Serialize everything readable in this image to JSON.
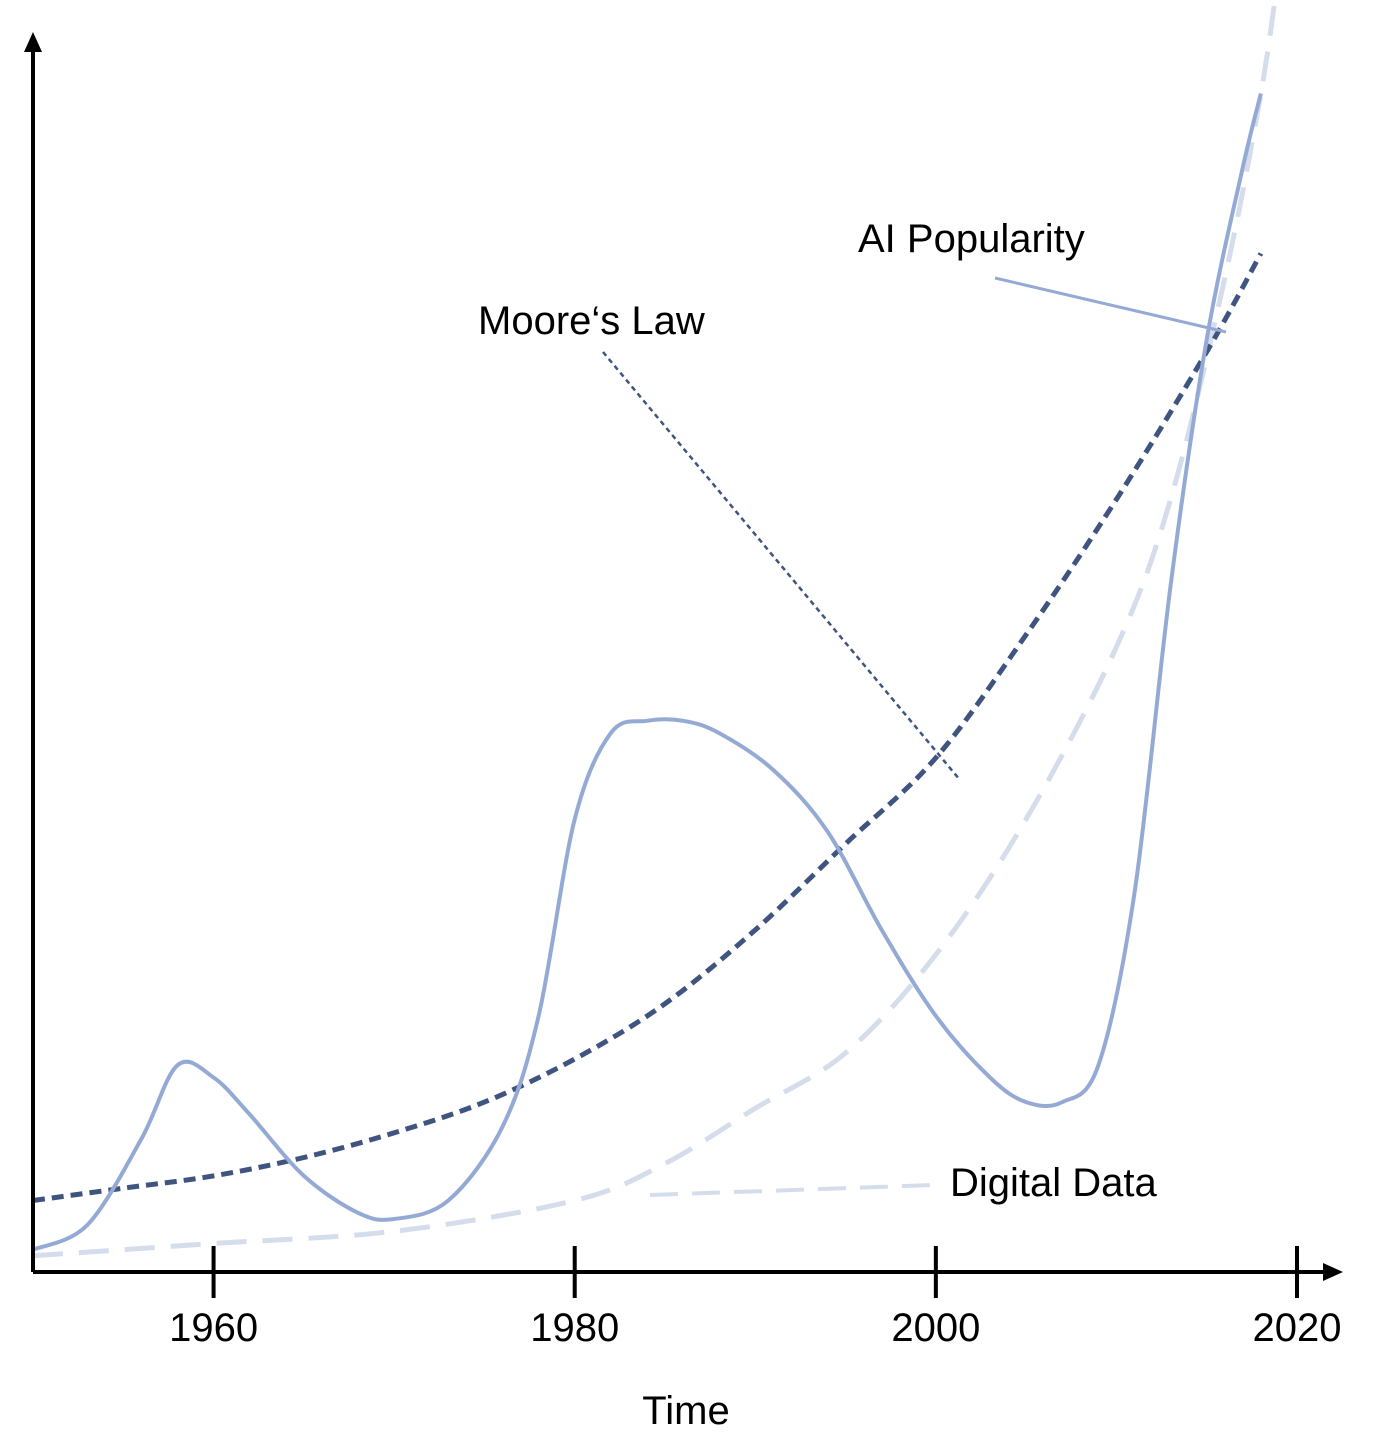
{
  "chart_data": {
    "type": "line",
    "title": "",
    "xlabel": "Time",
    "ylabel": "",
    "xlim": [
      1950,
      2020
    ],
    "ylim": [
      0,
      100
    ],
    "x_ticks": [
      1960,
      1980,
      2000,
      2020
    ],
    "grid": false,
    "legend": "inline annotations with leader lines",
    "series": [
      {
        "name": "AI Popularity",
        "color": "#94aad5",
        "style": "solid",
        "points": [
          [
            1950,
            1
          ],
          [
            1953,
            3
          ],
          [
            1956,
            10
          ],
          [
            1958,
            16
          ],
          [
            1960,
            15
          ],
          [
            1962,
            12
          ],
          [
            1965,
            7
          ],
          [
            1968,
            4
          ],
          [
            1970,
            3.5
          ],
          [
            1973,
            5
          ],
          [
            1976,
            11
          ],
          [
            1978,
            20
          ],
          [
            1980,
            36
          ],
          [
            1982,
            43
          ],
          [
            1984,
            44
          ],
          [
            1986,
            44
          ],
          [
            1988,
            43
          ],
          [
            1991,
            40
          ],
          [
            1994,
            35
          ],
          [
            1997,
            27
          ],
          [
            2000,
            20
          ],
          [
            2003,
            15
          ],
          [
            2005,
            13
          ],
          [
            2007,
            13
          ],
          [
            2009,
            16
          ],
          [
            2011,
            30
          ],
          [
            2013,
            55
          ],
          [
            2015,
            75
          ],
          [
            2017,
            89
          ],
          [
            2018,
            95
          ]
        ]
      },
      {
        "name": "Moore‘s Law",
        "color": "#3f5580",
        "style": "short-dash",
        "points": [
          [
            1950,
            5
          ],
          [
            1955,
            6
          ],
          [
            1960,
            7
          ],
          [
            1965,
            8.5
          ],
          [
            1970,
            10.5
          ],
          [
            1975,
            13
          ],
          [
            1980,
            16.5
          ],
          [
            1985,
            21
          ],
          [
            1990,
            27
          ],
          [
            1995,
            34
          ],
          [
            2000,
            41
          ],
          [
            2005,
            51
          ],
          [
            2010,
            62
          ],
          [
            2015,
            74
          ],
          [
            2018,
            82
          ]
        ]
      },
      {
        "name": "Digital Data",
        "color": "#d5ddec",
        "style": "long-dash",
        "points": [
          [
            1950,
            0.5
          ],
          [
            1960,
            1.5
          ],
          [
            1970,
            2.5
          ],
          [
            1980,
            5
          ],
          [
            1985,
            8
          ],
          [
            1990,
            12.5
          ],
          [
            1995,
            17
          ],
          [
            2000,
            25
          ],
          [
            2005,
            36
          ],
          [
            2010,
            50
          ],
          [
            2013,
            62
          ],
          [
            2016,
            80
          ],
          [
            2018,
            95
          ],
          [
            2019,
            105
          ]
        ]
      }
    ],
    "annotations": [
      {
        "text": "AI Popularity",
        "series": 0
      },
      {
        "text": "Moore‘s Law",
        "series": 1
      },
      {
        "text": "Digital Data",
        "series": 2
      }
    ]
  }
}
